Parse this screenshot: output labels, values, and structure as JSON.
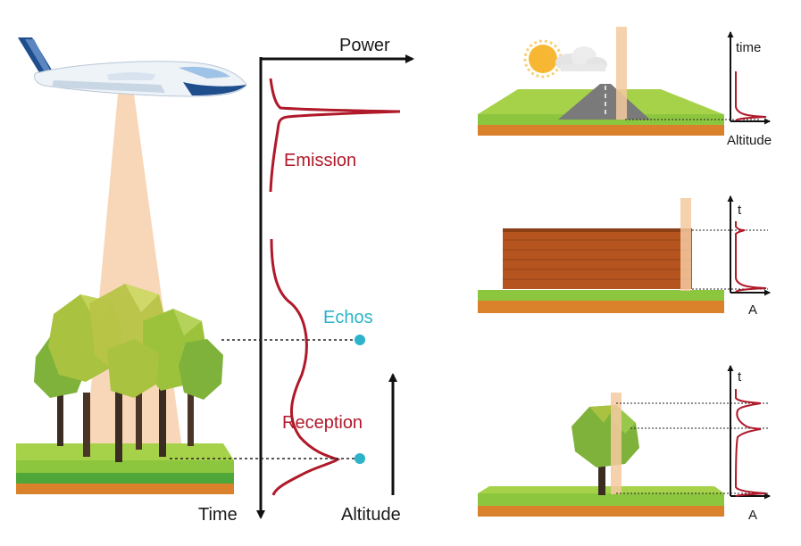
{
  "left_panel": {
    "axis_power_label": "Power",
    "axis_time_label": "Time",
    "axis_altitude_label": "Altitude",
    "emission_label": "Emission",
    "echos_label": "Echos",
    "reception_label": "Reception"
  },
  "right_panels": {
    "road": {
      "y_axis_label": "time",
      "x_axis_label": "Altitude"
    },
    "wall": {
      "y_axis_label": "t",
      "x_axis_label": "A"
    },
    "tree": {
      "y_axis_label": "t",
      "x_axis_label": "A"
    }
  },
  "colors": {
    "waveform": "#b0192a",
    "echo_marker": "#2ab3c9",
    "laser_beam": "#f5c9a0",
    "grass": "#8cc63f",
    "soil": "#d9822b",
    "foliage": "#a9c23f",
    "brick": "#b5541f",
    "road": "#7a7a7a",
    "airplane_body": "#eef3f8",
    "airplane_accent": "#1f4e8c"
  },
  "icons": [
    "airplane-icon",
    "trees-icon",
    "sun-icon",
    "cloud-icon",
    "wall-icon",
    "tree-icon"
  ]
}
